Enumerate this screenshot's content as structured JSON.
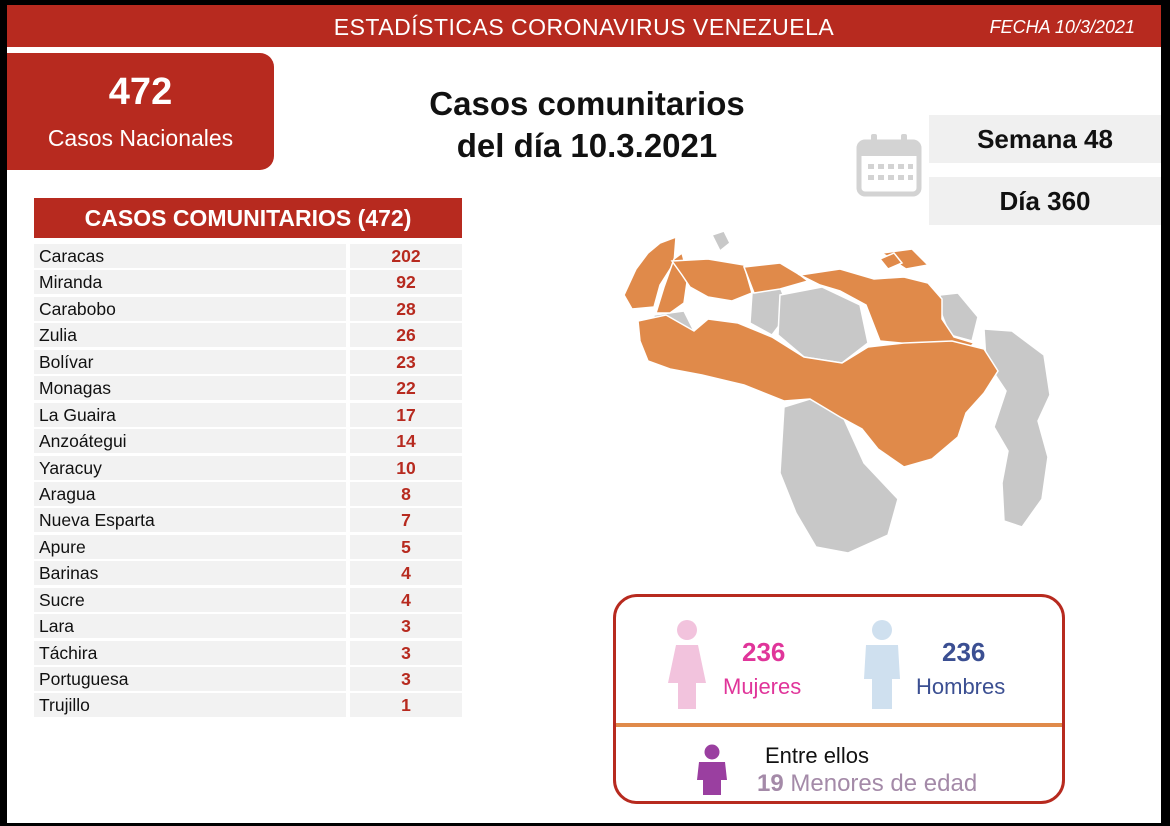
{
  "header": {
    "title": "ESTADÍSTICAS CORONAVIRUS VENEZUELA",
    "date": "FECHA 10/3/2021"
  },
  "national": {
    "count": "472",
    "label": "Casos Nacionales"
  },
  "headline": {
    "line1": "Casos comunitarios",
    "line2": "del día 10.3.2021"
  },
  "period": {
    "week": "Semana 48",
    "day": "Día 360"
  },
  "icons": {
    "calendar": "calendar-icon",
    "female": "female-icon",
    "male": "male-icon",
    "child": "child-icon"
  },
  "colors": {
    "brand_red": "#b72a1f",
    "affected": "#e08a4a",
    "unaffected": "#c8c8c8",
    "female": "#e0359a",
    "male": "#3b4f92",
    "minors": "#a48aa8"
  },
  "chart_data": {
    "type": "table",
    "title": "CASOS COMUNITARIOS (472)",
    "categories": [
      "Caracas",
      "Miranda",
      "Carabobo",
      "Zulia",
      "Bolívar",
      "Monagas",
      "La Guaira",
      "Anzoátegui",
      "Yaracuy",
      "Aragua",
      "Nueva Esparta",
      "Apure",
      "Barinas",
      "Sucre",
      "Lara",
      "Táchira",
      "Portuguesa",
      "Trujillo"
    ],
    "values": [
      202,
      92,
      28,
      26,
      23,
      22,
      17,
      14,
      10,
      8,
      7,
      5,
      4,
      4,
      3,
      3,
      3,
      1
    ]
  },
  "gender": {
    "women_count": "236",
    "women_label": "Mujeres",
    "men_count": "236",
    "men_label": "Hombres"
  },
  "minors": {
    "intro": "Entre ellos",
    "count": "19",
    "label": "Menores de edad"
  }
}
